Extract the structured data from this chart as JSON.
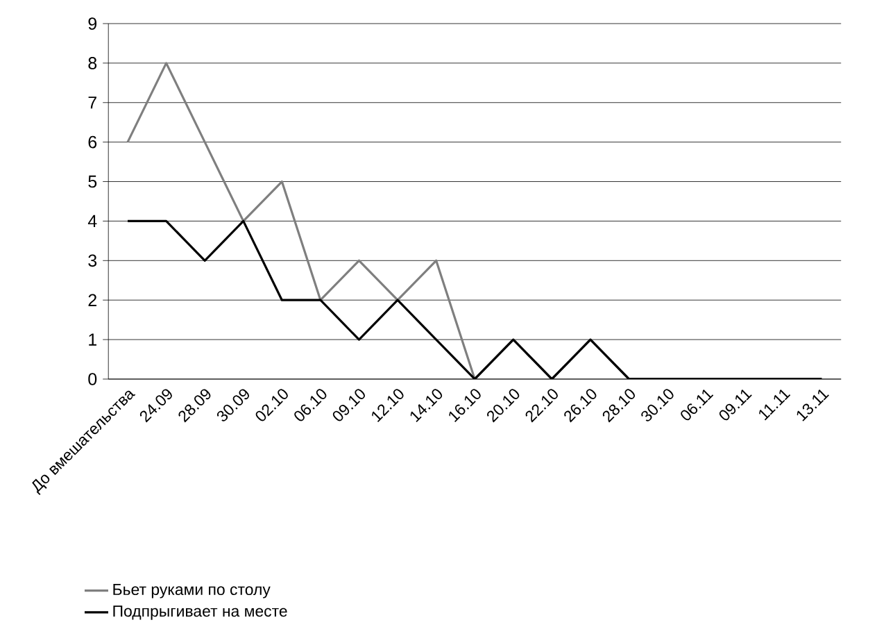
{
  "chart_data": {
    "type": "line",
    "categories": [
      "До вмешательства",
      "24.09",
      "28.09",
      "30.09",
      "02.10",
      "06.10",
      "09.10",
      "12.10",
      "14.10",
      "16.10",
      "20.10",
      "22.10",
      "26.10",
      "28.10",
      "30.10",
      "06.11",
      "09.11",
      "11.11",
      "13.11"
    ],
    "series": [
      {
        "name": "Бьет руками по столу",
        "color": "#7f7f7f",
        "values": [
          6,
          8,
          6,
          4,
          5,
          2,
          3,
          2,
          3,
          0,
          1,
          0,
          1,
          0,
          0,
          0,
          0,
          0,
          0
        ]
      },
      {
        "name": "Подпрыгивает на месте",
        "color": "#000000",
        "values": [
          4,
          4,
          3,
          4,
          2,
          2,
          1,
          2,
          1,
          0,
          1,
          0,
          1,
          0,
          0,
          0,
          0,
          0,
          0
        ]
      }
    ],
    "ylim": [
      0,
      9
    ],
    "yticks": [
      0,
      1,
      2,
      3,
      4,
      5,
      6,
      7,
      8,
      9
    ],
    "grid": "y",
    "legend": "bottom left",
    "marker": "none",
    "line_style": "solid"
  }
}
